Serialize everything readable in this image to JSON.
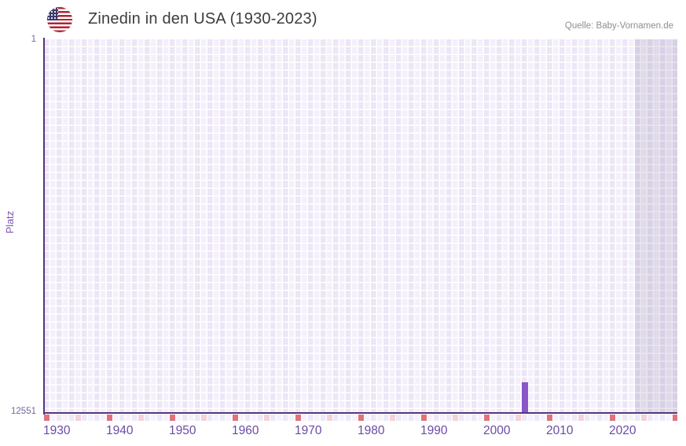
{
  "header": {
    "flag_icon": "us-flag-icon",
    "title": "Zinedin in den USA (1930-2023)",
    "source": "Quelle: Baby-Vornamen.de"
  },
  "chart_data": {
    "type": "bar",
    "title": "Zinedin in den USA (1930-2023)",
    "xlabel": "",
    "ylabel": "Platz",
    "x_range": [
      1930,
      2023
    ],
    "x_tick_labels": [
      1930,
      1940,
      1950,
      1960,
      1970,
      1980,
      1990,
      2000,
      2010,
      2020
    ],
    "strip_dark_tick_years": [
      1930,
      1940,
      1950,
      1960,
      1970,
      1980,
      1990,
      2000,
      2010,
      2020,
      2030
    ],
    "strip_light_tick_years": [
      1935,
      1945,
      1955,
      1965,
      1975,
      1985,
      1995,
      2005,
      2015,
      2025
    ],
    "y_axis": {
      "top_label": "1",
      "bottom_label": "12551",
      "min": 1,
      "max": 12551,
      "inverted": true
    },
    "series": [
      {
        "name": "Platz",
        "points": [
          {
            "year": 2006,
            "rank": 11550
          }
        ]
      }
    ],
    "shaded_region": {
      "start_year": 2024
    },
    "grid": true,
    "legend_position": "none",
    "colors": {
      "bar": "#8a55c8",
      "axis": "#54357e",
      "tick_decade": "#e0727c",
      "tick_half_decade": "#f3d2da",
      "grid_cell_light": "#f4f0fb",
      "grid_cell_dark": "#ece6f6",
      "x_label": "#6b4aa4",
      "y_label": "#75659f",
      "y_axis_title": "#7e56b4",
      "title": "#3d3d3d",
      "source": "#8e8e8e"
    }
  }
}
